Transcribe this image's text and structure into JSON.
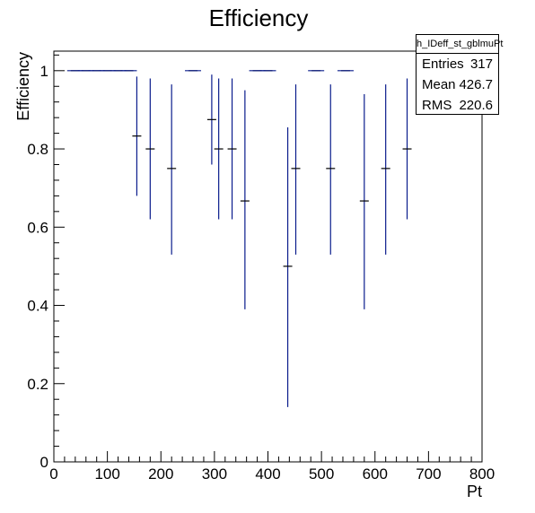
{
  "chart_data": {
    "type": "scatter",
    "title": "Efficiency",
    "xlabel": "Pt",
    "ylabel": "Efficiency",
    "xlim": [
      0,
      800
    ],
    "ylim": [
      0,
      1.05
    ],
    "xticks": [
      "0",
      "100",
      "200",
      "300",
      "400",
      "500",
      "600",
      "700",
      "800"
    ],
    "yticks": [
      "0",
      "0.2",
      "0.4",
      "0.6",
      "0.8",
      "1"
    ],
    "grid": false,
    "series": [
      {
        "color": "#0a1c8c",
        "points": [
          {
            "x": 40,
            "y": 1.0,
            "lo": 1.0,
            "hi": 1.0
          },
          {
            "x": 60,
            "y": 1.0,
            "lo": 1.0,
            "hi": 1.0
          },
          {
            "x": 80,
            "y": 1.0,
            "lo": 1.0,
            "hi": 1.0
          },
          {
            "x": 100,
            "y": 1.0,
            "lo": 1.0,
            "hi": 1.0
          },
          {
            "x": 120,
            "y": 1.0,
            "lo": 1.0,
            "hi": 1.0
          },
          {
            "x": 140,
            "y": 1.0,
            "lo": 1.0,
            "hi": 1.0
          },
          {
            "x": 155,
            "y": 0.833,
            "lo": 0.68,
            "hi": 0.985
          },
          {
            "x": 180,
            "y": 0.8,
            "lo": 0.62,
            "hi": 0.98
          },
          {
            "x": 220,
            "y": 0.75,
            "lo": 0.53,
            "hi": 0.965
          },
          {
            "x": 260,
            "y": 1.0,
            "lo": 1.0,
            "hi": 1.0
          },
          {
            "x": 295,
            "y": 0.875,
            "lo": 0.76,
            "hi": 0.99
          },
          {
            "x": 308,
            "y": 0.8,
            "lo": 0.62,
            "hi": 0.98
          },
          {
            "x": 333,
            "y": 0.8,
            "lo": 0.62,
            "hi": 0.98
          },
          {
            "x": 357,
            "y": 0.667,
            "lo": 0.39,
            "hi": 0.95
          },
          {
            "x": 380,
            "y": 1.0,
            "lo": 1.0,
            "hi": 1.0
          },
          {
            "x": 400,
            "y": 1.0,
            "lo": 1.0,
            "hi": 1.0
          },
          {
            "x": 437,
            "y": 0.5,
            "lo": 0.14,
            "hi": 0.855
          },
          {
            "x": 452,
            "y": 0.75,
            "lo": 0.53,
            "hi": 0.965
          },
          {
            "x": 490,
            "y": 1.0,
            "lo": 1.0,
            "hi": 1.0
          },
          {
            "x": 517,
            "y": 0.75,
            "lo": 0.53,
            "hi": 0.965
          },
          {
            "x": 545,
            "y": 1.0,
            "lo": 1.0,
            "hi": 1.0
          },
          {
            "x": 580,
            "y": 0.667,
            "lo": 0.39,
            "hi": 0.94
          },
          {
            "x": 620,
            "y": 0.75,
            "lo": 0.53,
            "hi": 0.965
          },
          {
            "x": 660,
            "y": 0.8,
            "lo": 0.62,
            "hi": 0.98
          }
        ]
      }
    ]
  },
  "stats": {
    "name": "h_IDeff_st_gblmuPt",
    "rows": [
      {
        "label": "Entries",
        "value": "317"
      },
      {
        "label": "Mean",
        "value": "426.7"
      },
      {
        "label": "RMS",
        "value": "220.6"
      }
    ]
  }
}
